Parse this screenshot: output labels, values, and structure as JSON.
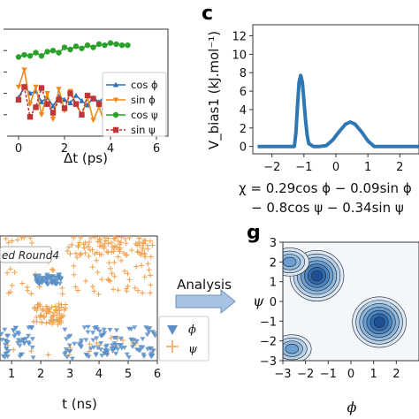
{
  "chart_data": [
    {
      "id": "autocorr",
      "type": "line",
      "xlabel": "Δt (ps)",
      "xticks": [
        "0",
        "2",
        "4",
        "6"
      ],
      "xlim": [
        -0.5,
        6.5
      ],
      "ylim": [
        0,
        1
      ],
      "x": [
        0,
        0.25,
        0.5,
        0.75,
        1,
        1.25,
        1.5,
        1.75,
        2,
        2.25,
        2.5,
        2.75,
        3,
        3.25,
        3.5,
        3.75,
        4,
        4.25,
        4.5,
        4.75
      ],
      "series": [
        {
          "name": "cos ϕ",
          "color": "#2f6db5",
          "marker": "triangle",
          "values": [
            0.36,
            0.46,
            0.4,
            0.42,
            0.32,
            0.36,
            0.28,
            0.37,
            0.34,
            0.31,
            0.38,
            0.33,
            0.29,
            0.36,
            0.32,
            0.37,
            0.31,
            0.33,
            0.32,
            0.34
          ]
        },
        {
          "name": "sin ϕ",
          "color": "#f0891c",
          "marker": "down-triangle",
          "values": [
            0.46,
            0.62,
            0.3,
            0.46,
            0.2,
            0.4,
            0.16,
            0.44,
            0.24,
            0.42,
            0.3,
            0.2,
            0.36,
            0.15,
            0.27,
            0.12,
            0.2,
            0.16,
            0.14,
            0.16
          ]
        },
        {
          "name": "cos ψ",
          "color": "#2aa12a",
          "marker": "circle",
          "values": [
            0.74,
            0.76,
            0.75,
            0.78,
            0.75,
            0.79,
            0.8,
            0.78,
            0.83,
            0.81,
            0.84,
            0.82,
            0.85,
            0.83,
            0.86,
            0.85,
            0.87,
            0.86,
            0.85,
            0.85
          ]
        },
        {
          "name": "sin ψ",
          "color": "#c03636",
          "marker": "square",
          "values": [
            0.34,
            0.46,
            0.18,
            0.27,
            0.45,
            0.3,
            0.22,
            0.34,
            0.26,
            0.4,
            0.3,
            0.2,
            0.38,
            0.35,
            0.3,
            0.24,
            0.36,
            0.34,
            0.31,
            0.38
          ]
        }
      ]
    },
    {
      "id": "c",
      "type": "line",
      "panel_label": "c",
      "ylabel": "V_bias1 (kJ.mol⁻¹)",
      "yticks": [
        "0",
        "2",
        "4",
        "6",
        "8",
        "10",
        "12"
      ],
      "xticks": [
        "−2",
        "−1",
        "0",
        "1",
        "2"
      ],
      "xlim": [
        -2.6,
        2.6
      ],
      "ylim": [
        -0.8,
        13.2
      ],
      "color": "#2f77b4",
      "x": [
        -2.45,
        -1.45,
        -1.3,
        -1.25,
        -1.2,
        -1.15,
        -1.1,
        -1.05,
        -1.0,
        -0.95,
        -0.9,
        -0.85,
        -0.7,
        -0.5,
        -0.3,
        -0.1,
        0.1,
        0.3,
        0.45,
        0.6,
        0.8,
        1.0,
        1.2,
        2.6
      ],
      "y": [
        0,
        0,
        0,
        1.5,
        4.5,
        7.0,
        7.7,
        7.0,
        5.0,
        2.8,
        1.2,
        0.3,
        0,
        0,
        0.1,
        0.7,
        1.6,
        2.4,
        2.65,
        2.4,
        1.6,
        0.6,
        0,
        0
      ],
      "formula_line1": "χ = 0.29cos ϕ − 0.09sin ϕ",
      "formula_line2": "− 0.8cos ψ − 0.34sin ψ"
    },
    {
      "id": "trajectory",
      "type": "scatter",
      "label_box": "ed Round4",
      "xlabel": "t (ns)",
      "xticks": [
        "1",
        "2",
        "3",
        "4",
        "5",
        "6"
      ],
      "xlim": [
        0.6,
        6
      ],
      "ylim": [
        -3.5,
        3.5
      ],
      "legend": [
        "ϕ",
        "ψ"
      ],
      "colors": {
        "phi": "#5b8fc6",
        "psi": "#f2a04b"
      }
    },
    {
      "id": "g",
      "type": "heatmap",
      "panel_label": "g",
      "ylabel": "ψ",
      "xlabel": "ϕ",
      "yticks": [
        "3",
        "2",
        "1",
        "0",
        "−1",
        "−2",
        "−3"
      ],
      "xticks": [
        "−3",
        "−2",
        "−1",
        "0",
        "1",
        "2"
      ],
      "xlim": [
        -3,
        3
      ],
      "ylim": [
        -3,
        3
      ],
      "colors": [
        "#f3f7fc",
        "#dce8f5",
        "#b9d2ec",
        "#8fb8df",
        "#6c9fd1",
        "#4b83c1",
        "#2f68ad",
        "#1f4f95"
      ],
      "basins": [
        {
          "phi": -1.5,
          "psi": 1.3,
          "depth": 7
        },
        {
          "phi": -2.7,
          "psi": 2.0,
          "depth": 4
        },
        {
          "phi": 1.25,
          "psi": -1.05,
          "depth": 7
        },
        {
          "phi": -2.6,
          "psi": -2.4,
          "depth": 4
        }
      ]
    }
  ],
  "arrow": {
    "label": "Analysis",
    "color": "#a8c2e4"
  }
}
